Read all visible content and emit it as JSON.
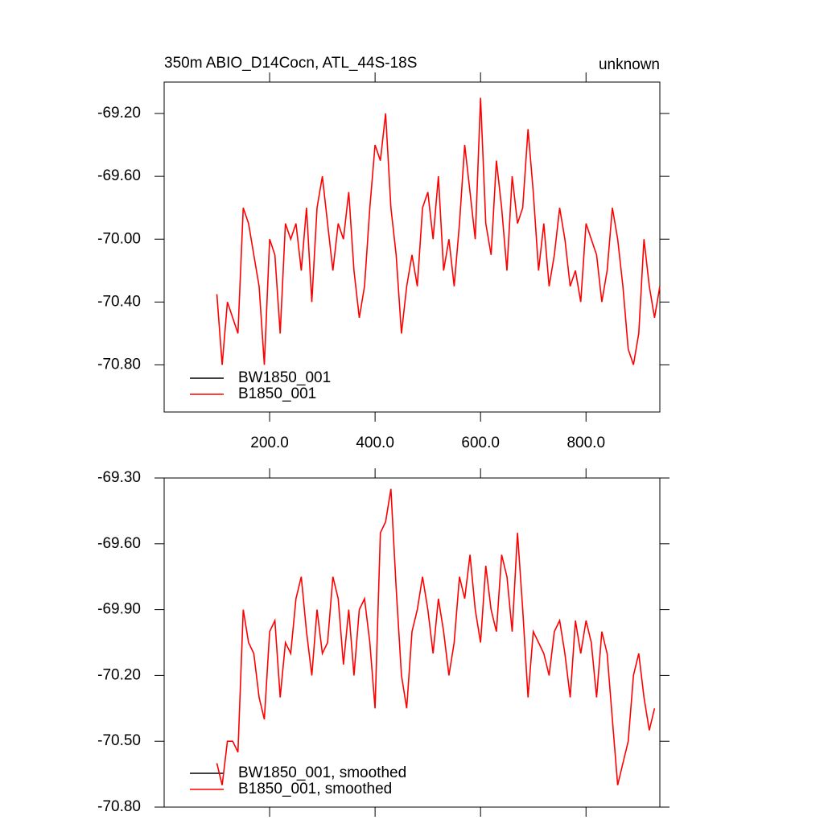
{
  "chart_data": [
    {
      "type": "line",
      "title": "350m ABIO_D14Cocn, ATL_44S-18S",
      "subtitle": "unknown",
      "x": [
        100,
        110,
        120,
        130,
        140,
        150,
        160,
        170,
        180,
        190,
        200,
        210,
        220,
        230,
        240,
        250,
        260,
        270,
        280,
        290,
        300,
        310,
        320,
        330,
        340,
        350,
        360,
        370,
        380,
        390,
        400,
        410,
        420,
        430,
        440,
        450,
        460,
        470,
        480,
        490,
        500,
        510,
        520,
        530,
        540,
        550,
        560,
        570,
        580,
        590,
        600,
        610,
        620,
        630,
        640,
        650,
        660,
        670,
        680,
        690,
        700,
        710,
        720,
        730,
        740,
        750,
        760,
        770,
        780,
        790,
        800,
        810,
        820,
        830,
        840,
        850,
        860,
        870,
        880,
        890,
        900,
        910,
        920,
        930,
        940
      ],
      "series": [
        {
          "name": "BW1850_001",
          "color": "#000000",
          "values": [
            null,
            null,
            null,
            null,
            null,
            null,
            null,
            null,
            null,
            null,
            null,
            null,
            null,
            null,
            null,
            null,
            null,
            null,
            null,
            null,
            null,
            null,
            null,
            null,
            null,
            null,
            null,
            null,
            null,
            null,
            null,
            null,
            null,
            null,
            null,
            null,
            null,
            null,
            null,
            null,
            null,
            null,
            null,
            null,
            null,
            null,
            null,
            null,
            null,
            null,
            null,
            null,
            null,
            null,
            null,
            null,
            null,
            null,
            null,
            null,
            null,
            null,
            null,
            null,
            null,
            null,
            null,
            null,
            null,
            null,
            null,
            null,
            null,
            null,
            null,
            null,
            null,
            null,
            null,
            null,
            null,
            null,
            null,
            null,
            null
          ]
        },
        {
          "name": "B1850_001",
          "color": "#ff0000",
          "values": [
            -70.35,
            -70.8,
            -70.4,
            -70.5,
            -70.6,
            -69.8,
            -69.9,
            -70.1,
            -70.3,
            -70.8,
            -70.0,
            -70.1,
            -70.6,
            -69.9,
            -70.0,
            -69.9,
            -70.2,
            -69.8,
            -70.4,
            -69.8,
            -69.6,
            -69.9,
            -70.2,
            -69.9,
            -70.0,
            -69.7,
            -70.2,
            -70.5,
            -70.3,
            -69.8,
            -69.4,
            -69.5,
            -69.2,
            -69.8,
            -70.1,
            -70.6,
            -70.3,
            -70.1,
            -70.3,
            -69.8,
            -69.7,
            -70.0,
            -69.6,
            -70.2,
            -70.0,
            -70.3,
            -69.9,
            -69.4,
            -69.7,
            -70.0,
            -69.1,
            -69.9,
            -70.1,
            -69.5,
            -69.8,
            -70.2,
            -69.6,
            -69.9,
            -69.8,
            -69.3,
            -69.7,
            -70.2,
            -69.9,
            -70.3,
            -70.1,
            -69.8,
            -70.0,
            -70.3,
            -70.2,
            -70.4,
            -69.9,
            -70.0,
            -70.1,
            -70.4,
            -70.2,
            -69.8,
            -70.0,
            -70.3,
            -70.7,
            -70.8,
            -70.6,
            -70.0,
            -70.3,
            -70.5,
            -70.3
          ]
        }
      ],
      "xlim": [
        0,
        940
      ],
      "xticks": [
        {
          "value": 200,
          "label": "200.0"
        },
        {
          "value": 400,
          "label": "400.0"
        },
        {
          "value": 600,
          "label": "600.0"
        },
        {
          "value": 800,
          "label": "800.0"
        }
      ],
      "ylim": [
        -71.1,
        -69.0
      ],
      "yticks": [
        {
          "value": -69.2,
          "label": "-69.20"
        },
        {
          "value": -69.6,
          "label": "-69.60"
        },
        {
          "value": -70.0,
          "label": "-70.00"
        },
        {
          "value": -70.4,
          "label": "-70.40"
        },
        {
          "value": -70.8,
          "label": "-70.80"
        }
      ],
      "legend": "lower left",
      "show_xtick_labels": true
    },
    {
      "type": "line",
      "x": [
        100,
        110,
        120,
        130,
        140,
        150,
        160,
        170,
        180,
        190,
        200,
        210,
        220,
        230,
        240,
        250,
        260,
        270,
        280,
        290,
        300,
        310,
        320,
        330,
        340,
        350,
        360,
        370,
        380,
        390,
        400,
        410,
        420,
        430,
        440,
        450,
        460,
        470,
        480,
        490,
        500,
        510,
        520,
        530,
        540,
        550,
        560,
        570,
        580,
        590,
        600,
        610,
        620,
        630,
        640,
        650,
        660,
        670,
        680,
        690,
        700,
        710,
        720,
        730,
        740,
        750,
        760,
        770,
        780,
        790,
        800,
        810,
        820,
        830,
        840,
        850,
        860,
        870,
        880,
        890,
        900,
        910,
        920,
        930
      ],
      "series": [
        {
          "name": "BW1850_001, smoothed",
          "color": "#000000",
          "values": [
            null,
            null,
            null,
            null,
            null,
            null,
            null,
            null,
            null,
            null,
            null,
            null,
            null,
            null,
            null,
            null,
            null,
            null,
            null,
            null,
            null,
            null,
            null,
            null,
            null,
            null,
            null,
            null,
            null,
            null,
            null,
            null,
            null,
            null,
            null,
            null,
            null,
            null,
            null,
            null,
            null,
            null,
            null,
            null,
            null,
            null,
            null,
            null,
            null,
            null,
            null,
            null,
            null,
            null,
            null,
            null,
            null,
            null,
            null,
            null,
            null,
            null,
            null,
            null,
            null,
            null,
            null,
            null,
            null,
            null,
            null,
            null,
            null,
            null,
            null,
            null,
            null,
            null,
            null,
            null,
            null,
            null,
            null,
            null
          ]
        },
        {
          "name": "B1850_001, smoothed",
          "color": "#ff0000",
          "values": [
            -70.6,
            -70.7,
            -70.5,
            -70.5,
            -70.55,
            -69.9,
            -70.05,
            -70.1,
            -70.3,
            -70.4,
            -70.0,
            -69.95,
            -70.3,
            -70.05,
            -70.1,
            -69.85,
            -69.75,
            -70.0,
            -70.2,
            -69.9,
            -70.1,
            -70.05,
            -69.75,
            -69.85,
            -70.15,
            -69.9,
            -70.2,
            -69.9,
            -69.85,
            -70.05,
            -70.35,
            -69.55,
            -69.5,
            -69.35,
            -69.8,
            -70.2,
            -70.35,
            -70.0,
            -69.9,
            -69.75,
            -69.9,
            -70.1,
            -69.85,
            -70.0,
            -70.2,
            -70.05,
            -69.75,
            -69.85,
            -69.65,
            -69.9,
            -70.05,
            -69.7,
            -69.9,
            -70.0,
            -69.65,
            -69.75,
            -70.0,
            -69.55,
            -69.9,
            -70.3,
            -70.0,
            -70.05,
            -70.1,
            -70.2,
            -70.0,
            -69.95,
            -70.1,
            -70.3,
            -69.95,
            -70.1,
            -69.95,
            -70.05,
            -70.3,
            -70.0,
            -70.1,
            -70.4,
            -70.7,
            -70.6,
            -70.5,
            -70.2,
            -70.1,
            -70.3,
            -70.45,
            -70.35
          ]
        }
      ],
      "xlim": [
        0,
        940
      ],
      "xticks": [
        200,
        400,
        600,
        800
      ],
      "ylim": [
        -70.8,
        -69.3
      ],
      "yticks": [
        {
          "value": -69.3,
          "label": "-69.30"
        },
        {
          "value": -69.6,
          "label": "-69.60"
        },
        {
          "value": -69.9,
          "label": "-69.90"
        },
        {
          "value": -70.2,
          "label": "-70.20"
        },
        {
          "value": -70.5,
          "label": "-70.50"
        },
        {
          "value": -70.8,
          "label": "-70.80"
        }
      ],
      "legend": "lower left",
      "show_xtick_labels": false
    }
  ]
}
